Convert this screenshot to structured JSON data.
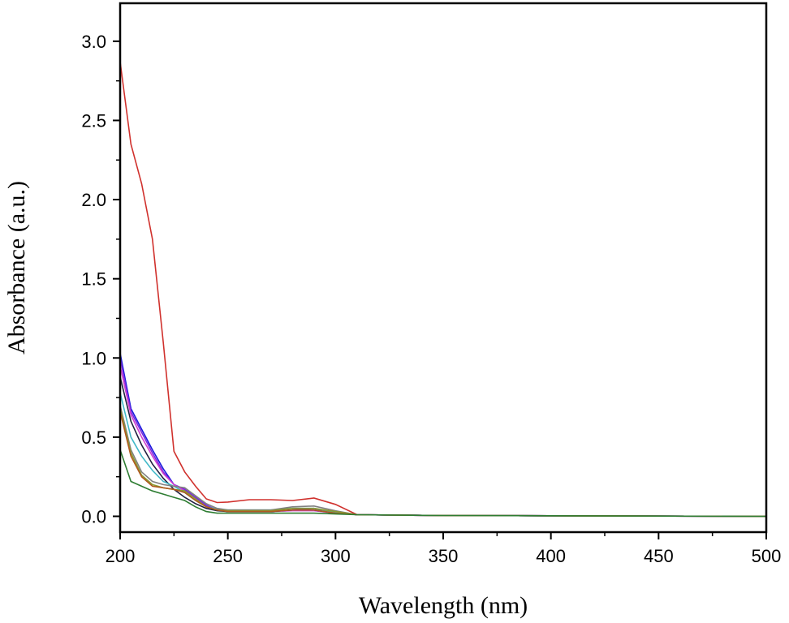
{
  "chart_data": {
    "type": "line",
    "title": "",
    "xlabel": "Wavelength (nm)",
    "ylabel": "Absorbance (a.u.)",
    "xlim": [
      200,
      500
    ],
    "ylim": [
      -0.1,
      3.24
    ],
    "xticks": [
      "200",
      "250",
      "300",
      "350",
      "400",
      "450",
      "500"
    ],
    "yticks": [
      "0.0",
      "0.5",
      "1.0",
      "1.5",
      "2.0",
      "2.5",
      "3.0"
    ],
    "grid": false,
    "legend": "none",
    "x": [
      200,
      205,
      210,
      215,
      220,
      225,
      230,
      235,
      240,
      245,
      250,
      260,
      270,
      280,
      290,
      300,
      310,
      350,
      500
    ],
    "series": [
      {
        "color": "#d0312d",
        "values": [
          2.87,
          2.35,
          2.1,
          1.75,
          1.1,
          0.41,
          0.28,
          0.19,
          0.11,
          0.087,
          0.09,
          0.105,
          0.105,
          0.1,
          0.115,
          0.075,
          0.01,
          0.005,
          0
        ]
      },
      {
        "color": "#1a1adc",
        "values": [
          1.03,
          0.68,
          0.55,
          0.42,
          0.3,
          0.2,
          0.17,
          0.12,
          0.07,
          0.04,
          0.03,
          0.03,
          0.03,
          0.04,
          0.04,
          0.02,
          0.01,
          0.005,
          0
        ]
      },
      {
        "color": "#7a2ae0",
        "values": [
          1.0,
          0.66,
          0.53,
          0.4,
          0.28,
          0.2,
          0.17,
          0.12,
          0.07,
          0.04,
          0.03,
          0.03,
          0.03,
          0.04,
          0.05,
          0.02,
          0.01,
          0.005,
          0
        ]
      },
      {
        "color": "#d040d0",
        "values": [
          0.95,
          0.64,
          0.5,
          0.38,
          0.27,
          0.2,
          0.16,
          0.11,
          0.06,
          0.04,
          0.03,
          0.03,
          0.03,
          0.035,
          0.035,
          0.02,
          0.01,
          0.005,
          0
        ]
      },
      {
        "color": "#202040",
        "values": [
          0.88,
          0.6,
          0.45,
          0.33,
          0.24,
          0.17,
          0.12,
          0.08,
          0.05,
          0.035,
          0.03,
          0.03,
          0.03,
          0.04,
          0.04,
          0.02,
          0.01,
          0.005,
          0
        ]
      },
      {
        "color": "#40b8c8",
        "values": [
          0.78,
          0.5,
          0.38,
          0.29,
          0.22,
          0.19,
          0.15,
          0.1,
          0.06,
          0.045,
          0.04,
          0.04,
          0.04,
          0.05,
          0.05,
          0.025,
          0.01,
          0.005,
          0
        ]
      },
      {
        "color": "#808080",
        "values": [
          0.7,
          0.42,
          0.28,
          0.22,
          0.2,
          0.19,
          0.18,
          0.13,
          0.08,
          0.05,
          0.04,
          0.04,
          0.04,
          0.06,
          0.065,
          0.035,
          0.01,
          0.005,
          0
        ]
      },
      {
        "color": "#8a9a30",
        "values": [
          0.68,
          0.4,
          0.26,
          0.2,
          0.18,
          0.17,
          0.16,
          0.11,
          0.06,
          0.04,
          0.035,
          0.035,
          0.035,
          0.05,
          0.05,
          0.03,
          0.01,
          0.005,
          0
        ]
      },
      {
        "color": "#b05a20",
        "values": [
          0.66,
          0.38,
          0.25,
          0.19,
          0.18,
          0.17,
          0.15,
          0.1,
          0.06,
          0.04,
          0.03,
          0.03,
          0.03,
          0.04,
          0.04,
          0.02,
          0.01,
          0.005,
          0
        ]
      },
      {
        "color": "#2e7d32",
        "values": [
          0.42,
          0.22,
          0.19,
          0.16,
          0.14,
          0.12,
          0.1,
          0.06,
          0.03,
          0.02,
          0.02,
          0.02,
          0.02,
          0.02,
          0.02,
          0.015,
          0.01,
          0.005,
          0
        ]
      }
    ]
  }
}
